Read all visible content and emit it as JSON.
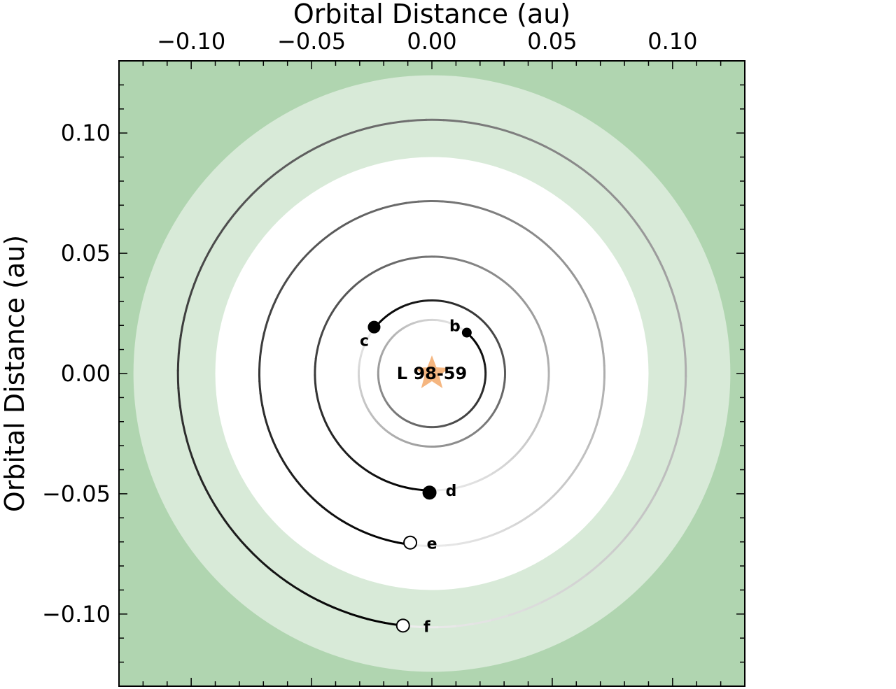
{
  "chart_data": {
    "type": "scatter",
    "xlabel": "Orbital Distance (au)",
    "ylabel": "Orbital Distance (au)",
    "xlim": [
      -0.13,
      0.13
    ],
    "ylim": [
      -0.13,
      0.13
    ],
    "x_ticks": [
      -0.1,
      -0.05,
      0.0,
      0.05,
      0.1
    ],
    "x_tick_labels": [
      "−0.10",
      "−0.05",
      "0.00",
      "0.05",
      "0.10"
    ],
    "y_ticks": [
      0.1,
      0.05,
      0.0,
      -0.05,
      -0.1
    ],
    "y_tick_labels": [
      "0.10",
      "0.05",
      "0.00",
      "−0.05",
      "−0.10"
    ],
    "grid": false,
    "star": {
      "name": "L 98-59",
      "x": 0.0,
      "y": 0.0,
      "color": "#f5b680"
    },
    "habitable_zone": {
      "conservative": {
        "inner_au": 0.09,
        "outer_au": 0.124,
        "color": "#d8ead8"
      },
      "optimistic_background": {
        "color": "#b0d5b0"
      }
    },
    "planets": [
      {
        "name": "b",
        "orbit_radius_au": 0.0223,
        "x": 0.0145,
        "y": 0.017,
        "marker": "filled"
      },
      {
        "name": "c",
        "orbit_radius_au": 0.0304,
        "x": -0.024,
        "y": 0.0193,
        "marker": "filled"
      },
      {
        "name": "d",
        "orbit_radius_au": 0.0486,
        "x": -0.001,
        "y": -0.0495,
        "marker": "filled"
      },
      {
        "name": "e",
        "orbit_radius_au": 0.0717,
        "x": -0.009,
        "y": -0.0703,
        "marker": "open"
      },
      {
        "name": "f",
        "orbit_radius_au": 0.1055,
        "x": -0.012,
        "y": -0.1048,
        "marker": "open"
      }
    ]
  }
}
